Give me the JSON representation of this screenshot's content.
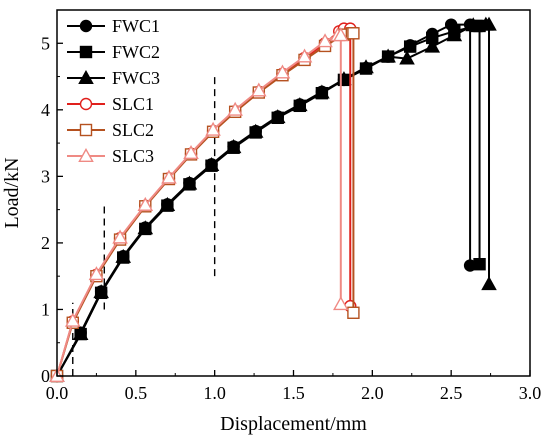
{
  "chart_data": {
    "type": "line",
    "title": "",
    "xlabel": "Displacement/mm",
    "ylabel": "Load/kN",
    "xlim": [
      0.0,
      3.0
    ],
    "ylim": [
      0,
      5.5
    ],
    "xticks": [
      "0.0",
      "0.5",
      "1.0",
      "1.5",
      "2.0",
      "2.5",
      "3.0"
    ],
    "yticks": [
      "0",
      "1",
      "2",
      "3",
      "4",
      "5"
    ],
    "grid": false,
    "legend_position": "top-left",
    "series": [
      {
        "name": "FWC1",
        "color": "#000000",
        "marker": "filled-circle",
        "x": [
          0,
          0.15,
          0.28,
          0.42,
          0.56,
          0.7,
          0.84,
          0.98,
          1.12,
          1.26,
          1.4,
          1.54,
          1.68,
          1.82,
          1.96,
          2.1,
          2.24,
          2.38,
          2.5,
          2.62,
          2.62
        ],
        "y": [
          0,
          0.65,
          1.27,
          1.8,
          2.23,
          2.58,
          2.9,
          3.18,
          3.45,
          3.68,
          3.9,
          4.08,
          4.27,
          4.45,
          4.63,
          4.8,
          4.97,
          5.14,
          5.28,
          5.28,
          1.66
        ]
      },
      {
        "name": "FWC2",
        "color": "#000000",
        "marker": "filled-square",
        "x": [
          0,
          0.15,
          0.28,
          0.42,
          0.56,
          0.7,
          0.84,
          0.98,
          1.12,
          1.26,
          1.4,
          1.54,
          1.68,
          1.82,
          1.96,
          2.1,
          2.24,
          2.38,
          2.52,
          2.66,
          2.68,
          2.68
        ],
        "y": [
          0,
          0.63,
          1.25,
          1.78,
          2.21,
          2.56,
          2.88,
          3.16,
          3.43,
          3.66,
          3.88,
          4.06,
          4.25,
          4.45,
          4.62,
          4.8,
          4.95,
          5.08,
          5.18,
          5.26,
          5.26,
          1.68
        ]
      },
      {
        "name": "FWC3",
        "color": "#000000",
        "marker": "filled-triangle",
        "x": [
          0,
          0.15,
          0.28,
          0.42,
          0.56,
          0.7,
          0.84,
          0.98,
          1.12,
          1.26,
          1.4,
          1.54,
          1.68,
          1.82,
          1.96,
          2.1,
          2.22,
          2.38,
          2.52,
          2.64,
          2.72,
          2.74,
          2.74
        ],
        "y": [
          0,
          0.63,
          1.26,
          1.79,
          2.22,
          2.57,
          2.89,
          3.17,
          3.44,
          3.67,
          3.89,
          4.07,
          4.26,
          4.46,
          4.64,
          4.8,
          4.77,
          4.95,
          5.12,
          5.27,
          5.28,
          5.28,
          1.38
        ]
      },
      {
        "name": "SLC1",
        "color": "#e0201c",
        "marker": "open-circle",
        "x": [
          0,
          0.1,
          0.25,
          0.4,
          0.56,
          0.71,
          0.85,
          0.99,
          1.13,
          1.28,
          1.43,
          1.57,
          1.7,
          1.79,
          1.82,
          1.86,
          1.86
        ],
        "y": [
          0,
          0.82,
          1.52,
          2.07,
          2.56,
          2.97,
          3.34,
          3.68,
          3.98,
          4.27,
          4.54,
          4.78,
          5.0,
          5.18,
          5.22,
          5.22,
          1.05
        ]
      },
      {
        "name": "SLC2",
        "color": "#b5511f",
        "marker": "open-square",
        "x": [
          0,
          0.1,
          0.25,
          0.4,
          0.56,
          0.71,
          0.85,
          0.99,
          1.13,
          1.28,
          1.43,
          1.57,
          1.7,
          1.82,
          1.87,
          1.88,
          1.88
        ],
        "y": [
          0,
          0.8,
          1.5,
          2.05,
          2.55,
          2.96,
          3.33,
          3.67,
          3.97,
          4.26,
          4.52,
          4.75,
          4.96,
          5.13,
          5.15,
          5.15,
          0.95
        ]
      },
      {
        "name": "SLC3",
        "color": "#ef8a84",
        "marker": "open-triangle",
        "x": [
          0,
          0.1,
          0.25,
          0.4,
          0.56,
          0.71,
          0.85,
          0.99,
          1.13,
          1.28,
          1.43,
          1.57,
          1.7,
          1.78,
          1.8,
          1.8
        ],
        "y": [
          0,
          0.83,
          1.53,
          2.08,
          2.57,
          2.98,
          3.35,
          3.7,
          4.0,
          4.29,
          4.56,
          4.8,
          5.03,
          5.12,
          5.12,
          1.08
        ]
      }
    ],
    "reference_lines": [
      {
        "x": 0.1,
        "y_range": [
          0,
          1.1
        ],
        "style": "dashed"
      },
      {
        "x": 0.3,
        "y_range": [
          1.0,
          2.6
        ],
        "style": "dashed"
      },
      {
        "x": 1.0,
        "y_range": [
          1.5,
          4.5
        ],
        "style": "dashed"
      }
    ]
  }
}
